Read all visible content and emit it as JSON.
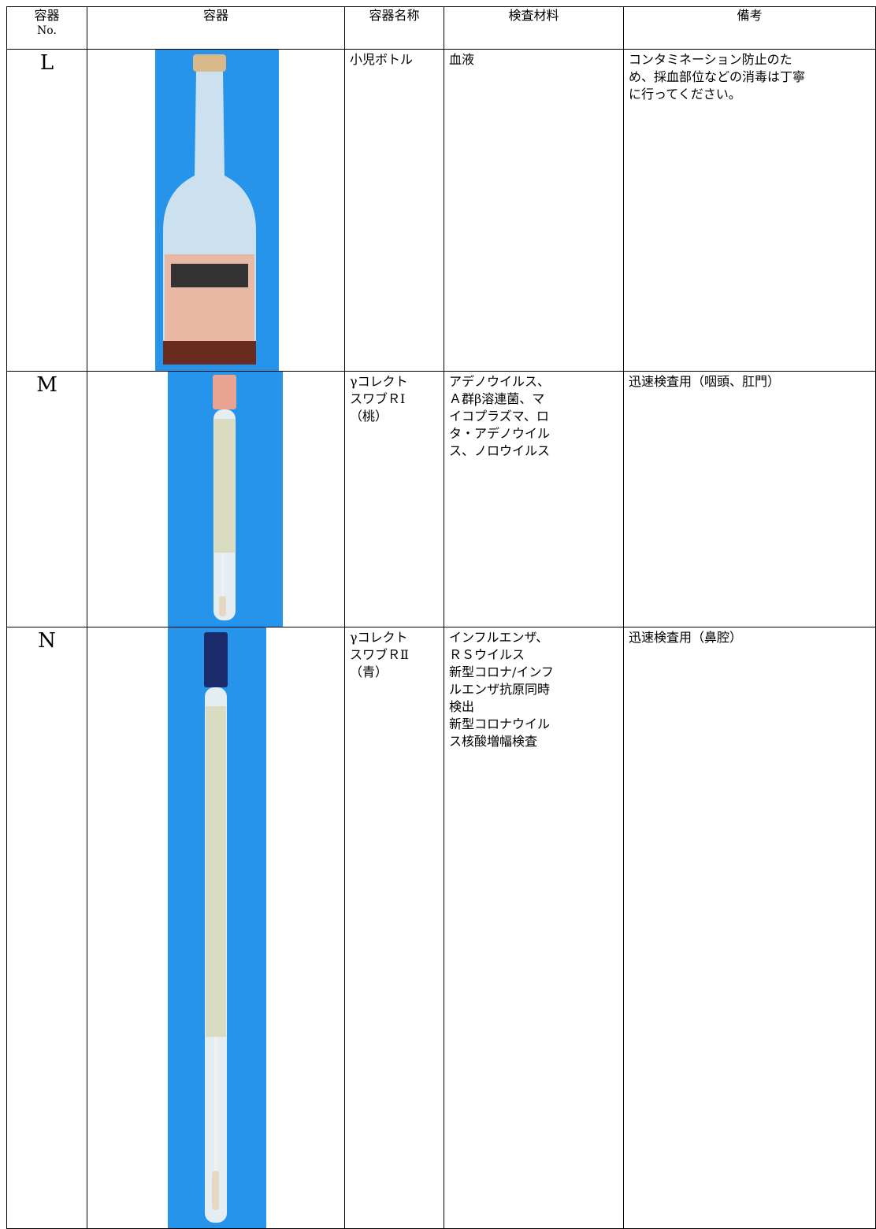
{
  "table": {
    "header": [
      [
        "容器",
        "No."
      ],
      [
        "容器"
      ],
      [
        "容器名称"
      ],
      [
        "検査材料"
      ],
      [
        "備考"
      ]
    ],
    "rows": [
      {
        "no": "L",
        "name": [
          "小児ボトル"
        ],
        "material": [
          "血液"
        ],
        "note": [
          "コンタミネーション防止のた",
          "め、採血部位などの消毒は丁寧",
          "に行ってください。"
        ]
      },
      {
        "no": "M",
        "name": [
          "γコレクト",
          "スワブＲⅠ",
          "（桃）"
        ],
        "material": [
          "アデノウイルス、",
          "Ａ群β溶連菌、マ",
          "イコプラズマ、ロ",
          "タ・アデノウイル",
          "ス、ノロウイルス"
        ],
        "note": [
          "迅速検査用（咽頭、肛門）"
        ]
      },
      {
        "no": "N",
        "name": [
          "γコレクト",
          "スワブＲⅡ",
          "（青）"
        ],
        "material": [
          "インフルエンザ、",
          "ＲＳウイルス",
          "新型コロナ/インフ",
          "ルエンザ抗原同時",
          "検出",
          "新型コロナウイル",
          "ス核酸増幅検査"
        ],
        "note": [
          "迅速検査用（鼻腔）"
        ]
      }
    ]
  }
}
